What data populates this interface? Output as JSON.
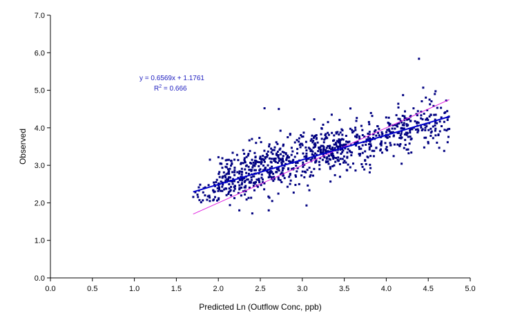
{
  "chart_data": {
    "type": "scatter",
    "title": "",
    "xlabel": "Predicted Ln (Outflow Conc, ppb)",
    "ylabel": "Observed",
    "xlim": [
      0.0,
      5.0
    ],
    "ylim": [
      0.0,
      7.0
    ],
    "x_ticks": [
      "0.0",
      "0.5",
      "1.0",
      "1.5",
      "2.0",
      "2.5",
      "3.0",
      "3.5",
      "4.0",
      "4.5",
      "5.0"
    ],
    "y_ticks": [
      "0.0",
      "1.0",
      "2.0",
      "3.0",
      "4.0",
      "5.0",
      "6.0",
      "7.0"
    ],
    "grid": false,
    "legend": "none",
    "point_color": "#000080",
    "series": [
      {
        "clusters": [
          {
            "x_range": [
              1.7,
              2.0
            ],
            "y_center": 2.3,
            "y_spread": 0.18,
            "count": 35
          },
          {
            "x_range": [
              2.0,
              2.4
            ],
            "y_center": 2.7,
            "y_spread": 0.3,
            "count": 170
          },
          {
            "x_range": [
              2.4,
              2.8
            ],
            "y_center": 2.95,
            "y_spread": 0.32,
            "count": 170
          },
          {
            "x_range": [
              2.8,
              3.1
            ],
            "y_center": 3.1,
            "y_spread": 0.33,
            "count": 90
          },
          {
            "x_range": [
              3.1,
              3.5
            ],
            "y_center": 3.4,
            "y_spread": 0.3,
            "count": 190
          },
          {
            "x_range": [
              3.5,
              3.9
            ],
            "y_center": 3.55,
            "y_spread": 0.33,
            "count": 110
          },
          {
            "x_range": [
              3.9,
              4.3
            ],
            "y_center": 3.85,
            "y_spread": 0.3,
            "count": 120
          },
          {
            "x_range": [
              4.3,
              4.75
            ],
            "y_center": 4.15,
            "y_spread": 0.33,
            "count": 95
          }
        ],
        "outliers": [
          {
            "x": 4.39,
            "y": 5.84
          },
          {
            "x": 2.55,
            "y": 4.52
          },
          {
            "x": 2.72,
            "y": 4.5
          },
          {
            "x": 4.2,
            "y": 4.87
          },
          {
            "x": 4.44,
            "y": 5.07
          },
          {
            "x": 1.9,
            "y": 3.15
          },
          {
            "x": 2.6,
            "y": 1.8
          },
          {
            "x": 3.05,
            "y": 1.93
          },
          {
            "x": 2.25,
            "y": 1.8
          },
          {
            "x": 4.75,
            "y": 3.97
          },
          {
            "x": 3.35,
            "y": 4.35
          }
        ]
      }
    ],
    "trendline": {
      "slope": 0.6569,
      "intercept": 1.1761,
      "x_range": [
        1.7,
        4.75
      ],
      "color": "#0000cc"
    },
    "reference_line": {
      "slope": 1.0,
      "intercept": 0.0,
      "x_range": [
        1.7,
        4.75
      ],
      "color": "#e020e0"
    },
    "annotation": {
      "equation": "y = 0.6569x + 1.1761",
      "r2_prefix": "R",
      "r2_sup": "2",
      "r2_value": " = 0.666"
    }
  }
}
